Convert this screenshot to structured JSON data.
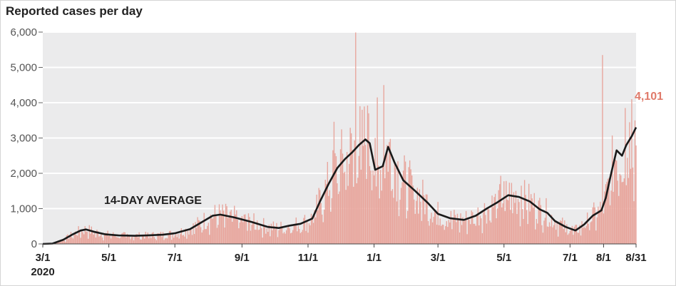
{
  "chart_data": {
    "type": "bar",
    "title": "Reported cases per day",
    "xlabel": "",
    "ylabel": "",
    "ylim": [
      0,
      6000
    ],
    "y_ticks": [
      "0",
      "1,000",
      "2,000",
      "3,000",
      "4,000",
      "5,000",
      "6,000"
    ],
    "x_tick_labels": [
      "3/1",
      "5/1",
      "7/1",
      "9/1",
      "11/1",
      "1/1",
      "3/1",
      "5/1",
      "7/1",
      "8/1",
      "8/31"
    ],
    "x_tick_sublabel": "2020",
    "grid": true,
    "colors": {
      "bars": "#e8a59c",
      "line": "#1a1a1a",
      "plot_bg": "#ebebec",
      "grid": "#ffffff",
      "last_label": "#e07a6a"
    },
    "annotation": "14-DAY AVERAGE",
    "last_value_label": "4,101",
    "start_date": "2020-03-01",
    "end_date": "2021-08-31",
    "series": [
      {
        "kind": "line",
        "points": [
          [
            "2020-03-01",
            0
          ],
          [
            "2020-03-10",
            10
          ],
          [
            "2020-03-20",
            120
          ],
          [
            "2020-03-28",
            260
          ],
          [
            "2020-04-05",
            380
          ],
          [
            "2020-04-10",
            410
          ],
          [
            "2020-04-18",
            340
          ],
          [
            "2020-04-28",
            270
          ],
          [
            "2020-05-10",
            240
          ],
          [
            "2020-05-25",
            230
          ],
          [
            "2020-06-05",
            240
          ],
          [
            "2020-06-20",
            260
          ],
          [
            "2020-07-01",
            300
          ],
          [
            "2020-07-15",
            420
          ],
          [
            "2020-07-25",
            600
          ],
          [
            "2020-08-05",
            800
          ],
          [
            "2020-08-12",
            830
          ],
          [
            "2020-08-25",
            750
          ],
          [
            "2020-09-10",
            620
          ],
          [
            "2020-09-25",
            480
          ],
          [
            "2020-10-05",
            450
          ],
          [
            "2020-10-15",
            520
          ],
          [
            "2020-10-25",
            570
          ],
          [
            "2020-11-05",
            720
          ],
          [
            "2020-11-12",
            1200
          ],
          [
            "2020-11-20",
            1700
          ],
          [
            "2020-11-28",
            2150
          ],
          [
            "2020-12-05",
            2400
          ],
          [
            "2020-12-12",
            2600
          ],
          [
            "2020-12-18",
            2800
          ],
          [
            "2020-12-24",
            2960
          ],
          [
            "2020-12-28",
            2850
          ],
          [
            "2021-01-02",
            2100
          ],
          [
            "2021-01-09",
            2200
          ],
          [
            "2021-01-14",
            2750
          ],
          [
            "2021-01-20",
            2300
          ],
          [
            "2021-01-28",
            1800
          ],
          [
            "2021-02-08",
            1500
          ],
          [
            "2021-02-20",
            1150
          ],
          [
            "2021-03-01",
            850
          ],
          [
            "2021-03-12",
            730
          ],
          [
            "2021-03-25",
            680
          ],
          [
            "2021-04-05",
            800
          ],
          [
            "2021-04-15",
            1000
          ],
          [
            "2021-04-25",
            1180
          ],
          [
            "2021-05-05",
            1380
          ],
          [
            "2021-05-15",
            1330
          ],
          [
            "2021-05-25",
            1200
          ],
          [
            "2021-06-03",
            980
          ],
          [
            "2021-06-10",
            880
          ],
          [
            "2021-06-17",
            650
          ],
          [
            "2021-06-27",
            480
          ],
          [
            "2021-07-06",
            380
          ],
          [
            "2021-07-14",
            550
          ],
          [
            "2021-07-22",
            800
          ],
          [
            "2021-07-30",
            950
          ],
          [
            "2021-08-03",
            1300
          ],
          [
            "2021-08-08",
            2000
          ],
          [
            "2021-08-13",
            2650
          ],
          [
            "2021-08-18",
            2500
          ],
          [
            "2021-08-22",
            2800
          ],
          [
            "2021-08-27",
            3050
          ],
          [
            "2021-08-31",
            3300
          ]
        ]
      },
      {
        "kind": "bars",
        "spikes": [
          [
            "2020-12-15",
            5990
          ],
          [
            "2021-01-04",
            4150
          ],
          [
            "2021-01-10",
            4500
          ],
          [
            "2021-07-31",
            5350
          ],
          [
            "2021-08-27",
            4101
          ],
          [
            "2020-12-21",
            3800
          ],
          [
            "2020-12-27",
            3700
          ],
          [
            "2020-11-25",
            3460
          ],
          [
            "2021-08-21",
            3850
          ],
          [
            "2021-05-17",
            1650
          ],
          [
            "2021-04-28",
            1930
          ]
        ]
      }
    ]
  }
}
